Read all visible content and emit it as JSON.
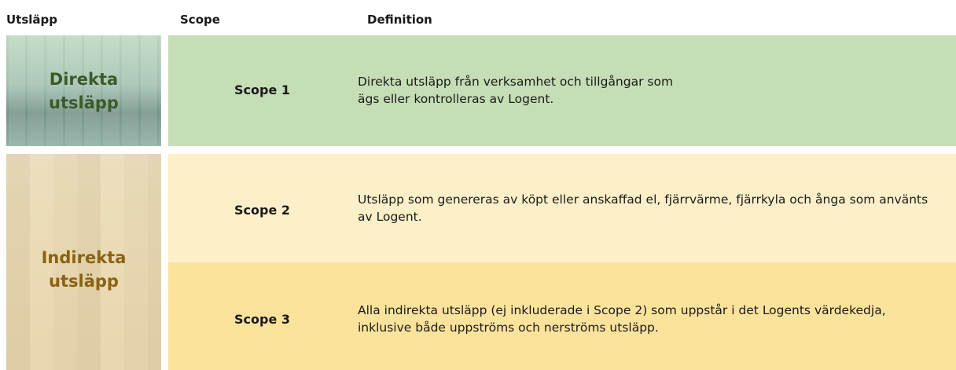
{
  "header": [
    "Utsläpp",
    "Scope",
    "Definition"
  ],
  "groups": [
    {
      "label": "Direkta utsläpp",
      "rows": [
        {
          "scope": "Scope 1",
          "definition": "Direkta utsläpp från verksamhet och tillgångar som ägs eller kontrolleras av Logent."
        }
      ]
    },
    {
      "label": "Indirekta utsläpp",
      "rows": [
        {
          "scope": "Scope 2",
          "definition": "Utsläpp som genereras av köpt eller anskaffad el, fjärrvärme, fjärrkyla och ånga som använts av Logent."
        },
        {
          "scope": "Scope 3",
          "definition": "Alla indirekta utsläpp (ej inkluderade i Scope 2) som uppstår i det Logents värdekedja, inklusive både uppströms och nerströms utsläpp."
        }
      ]
    }
  ]
}
